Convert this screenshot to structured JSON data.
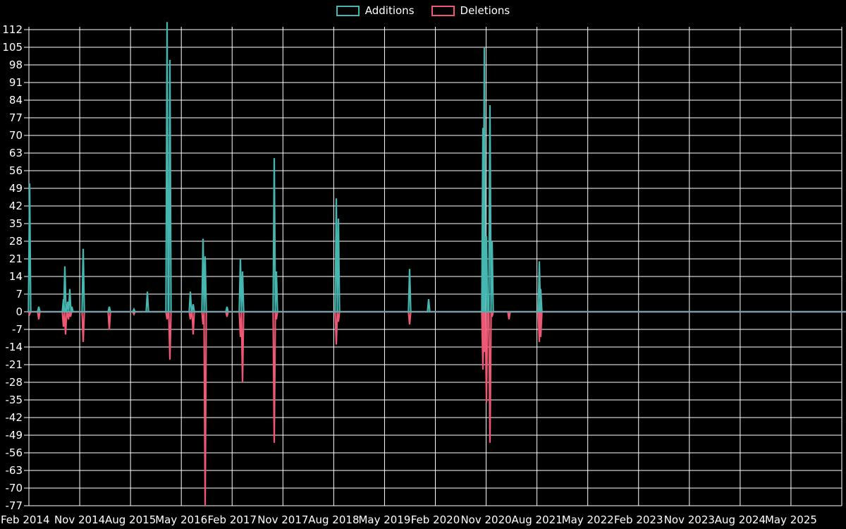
{
  "page": {
    "background": "#000000",
    "text_color": "#ffffff"
  },
  "legend": {
    "items": [
      {
        "label": "Additions",
        "color": "#45b7b0"
      },
      {
        "label": "Deletions",
        "color": "#ef5874"
      }
    ]
  },
  "chart_data": {
    "type": "line",
    "title": "",
    "xlabel": "",
    "ylabel": "",
    "grid": true,
    "grid_color": "#ffffff",
    "text_color": "#ffffff",
    "background_color": "#000000",
    "baseline_color": "#7b9aa4",
    "legend_position": "top-center",
    "ylim": [
      -77,
      112
    ],
    "y_step": 7,
    "y_ticks": [
      112,
      105,
      98,
      91,
      84,
      77,
      70,
      63,
      56,
      49,
      42,
      35,
      28,
      21,
      14,
      7,
      0,
      -7,
      -14,
      -21,
      -28,
      -35,
      -42,
      -49,
      -56,
      -63,
      -70,
      -77
    ],
    "x_tick_labels": [
      "Feb 2014",
      "Nov 2014",
      "Aug 2015",
      "May 2016",
      "Feb 2017",
      "Nov 2017",
      "Aug 2018",
      "May 2019",
      "Feb 2020",
      "Nov 2020",
      "Aug 2021",
      "May 2022",
      "Feb 2023",
      "Nov 2023",
      "Aug 2024",
      "May 2025"
    ],
    "series": [
      {
        "name": "Additions",
        "color": "#45b7b0",
        "points": [
          {
            "t": "Feb 2014",
            "x": 42,
            "v": 51
          },
          {
            "t": "Apr 2014",
            "x": 55,
            "v": 2
          },
          {
            "t": "Aug 2014",
            "x": 90,
            "v": 5
          },
          {
            "t": "Aug 2014",
            "x": 92,
            "v": 18
          },
          {
            "t": "Sep 2014",
            "x": 96,
            "v": 4
          },
          {
            "t": "Sep 2014",
            "x": 99,
            "v": 9
          },
          {
            "t": "Oct 2014",
            "x": 102,
            "v": 2
          },
          {
            "t": "Dec 2014",
            "x": 118,
            "v": 25
          },
          {
            "t": "Apr 2015",
            "x": 155,
            "v": 2
          },
          {
            "t": "Aug 2015",
            "x": 190,
            "v": 1
          },
          {
            "t": "Nov 2015",
            "x": 209,
            "v": 8
          },
          {
            "t": "Feb 2016",
            "x": 237,
            "v": 115
          },
          {
            "t": "Mar 2016",
            "x": 241,
            "v": 100
          },
          {
            "t": "Jun 2016",
            "x": 270,
            "v": 8
          },
          {
            "t": "Jul 2016",
            "x": 274,
            "v": 3
          },
          {
            "t": "Sep 2016",
            "x": 288,
            "v": 29
          },
          {
            "t": "Sep 2016",
            "x": 291,
            "v": 22
          },
          {
            "t": "Jan 2017",
            "x": 322,
            "v": 2
          },
          {
            "t": "Mar 2017",
            "x": 341,
            "v": 21
          },
          {
            "t": "Apr 2017",
            "x": 344,
            "v": 16
          },
          {
            "t": "Oct 2017",
            "x": 389,
            "v": 61
          },
          {
            "t": "Oct 2017",
            "x": 392,
            "v": 16
          },
          {
            "t": "Aug 2018",
            "x": 477,
            "v": 45
          },
          {
            "t": "Sep 2018",
            "x": 480,
            "v": 37
          },
          {
            "t": "Sep 2019",
            "x": 581,
            "v": 17
          },
          {
            "t": "Jan 2020",
            "x": 608,
            "v": 5
          },
          {
            "t": "Oct 2020",
            "x": 685,
            "v": 73
          },
          {
            "t": "Nov 2020",
            "x": 687,
            "v": 105
          },
          {
            "t": "Nov 2020",
            "x": 690,
            "v": 30
          },
          {
            "t": "Nov 2020",
            "x": 695,
            "v": 82
          },
          {
            "t": "Dec 2020",
            "x": 698,
            "v": 28
          },
          {
            "t": "Aug 2021",
            "x": 765,
            "v": 20
          },
          {
            "t": "Aug 2021",
            "x": 767,
            "v": 9
          }
        ]
      },
      {
        "name": "Deletions",
        "color": "#ef5874",
        "points": [
          {
            "t": "Feb 2014",
            "x": 42,
            "v": -1
          },
          {
            "t": "Apr 2014",
            "x": 55,
            "v": -3
          },
          {
            "t": "Aug 2014",
            "x": 90,
            "v": -6
          },
          {
            "t": "Aug 2014",
            "x": 93,
            "v": -9
          },
          {
            "t": "Sep 2014",
            "x": 97,
            "v": -3
          },
          {
            "t": "Oct 2014",
            "x": 100,
            "v": -2
          },
          {
            "t": "Dec 2014",
            "x": 118,
            "v": -12
          },
          {
            "t": "Apr 2015",
            "x": 155,
            "v": -7
          },
          {
            "t": "Aug 2015",
            "x": 190,
            "v": -1
          },
          {
            "t": "Feb 2016",
            "x": 237,
            "v": -3
          },
          {
            "t": "Mar 2016",
            "x": 241,
            "v": -19
          },
          {
            "t": "Jun 2016",
            "x": 270,
            "v": -3
          },
          {
            "t": "Jul 2016",
            "x": 274,
            "v": -9
          },
          {
            "t": "Sep 2016",
            "x": 288,
            "v": -5
          },
          {
            "t": "Sep 2016",
            "x": 291,
            "v": -77
          },
          {
            "t": "Jan 2017",
            "x": 322,
            "v": -2
          },
          {
            "t": "Mar 2017",
            "x": 341,
            "v": -10
          },
          {
            "t": "Apr 2017",
            "x": 344,
            "v": -28
          },
          {
            "t": "Oct 2017",
            "x": 389,
            "v": -52
          },
          {
            "t": "Oct 2017",
            "x": 392,
            "v": -3
          },
          {
            "t": "Aug 2018",
            "x": 477,
            "v": -13
          },
          {
            "t": "Sep 2018",
            "x": 480,
            "v": -4
          },
          {
            "t": "Sep 2019",
            "x": 581,
            "v": -5
          },
          {
            "t": "Oct 2020",
            "x": 685,
            "v": -23
          },
          {
            "t": "Nov 2020",
            "x": 687,
            "v": -16
          },
          {
            "t": "Nov 2020",
            "x": 690,
            "v": -36
          },
          {
            "t": "Nov 2020",
            "x": 695,
            "v": -52
          },
          {
            "t": "Dec 2020",
            "x": 698,
            "v": -2
          },
          {
            "t": "Mar 2021",
            "x": 722,
            "v": -3
          },
          {
            "t": "Aug 2021",
            "x": 765,
            "v": -12
          },
          {
            "t": "Aug 2021",
            "x": 767,
            "v": -10
          }
        ]
      }
    ]
  }
}
